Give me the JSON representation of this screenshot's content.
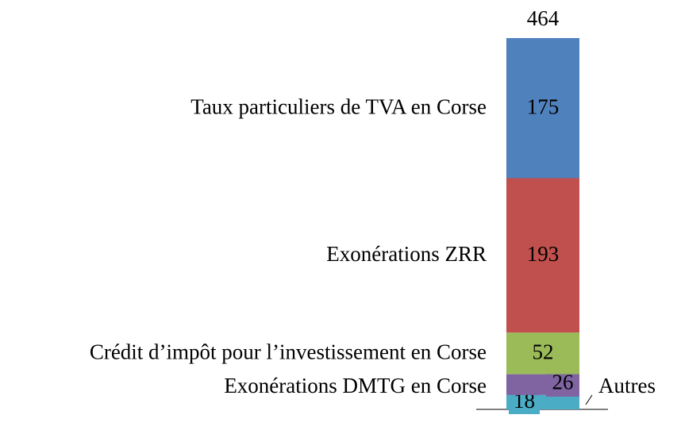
{
  "chart_data": {
    "type": "stacked_bar",
    "total": 464,
    "series": [
      {
        "name": "Autres",
        "color": "#4bacc6",
        "values": [
          18
        ]
      },
      {
        "name": "Exonérations DMTG en Corse",
        "color": "#8064a2",
        "values": [
          26
        ]
      },
      {
        "name": "Crédit d’impôt pour l’investissement en Corse",
        "color": "#9bbb59",
        "values": [
          52
        ]
      },
      {
        "name": "Exonérations ZRR",
        "color": "#c0504d",
        "values": [
          193
        ]
      },
      {
        "name": "Taux particuliers de TVA en Corse",
        "color": "#4f81bd",
        "values": [
          175
        ]
      }
    ]
  }
}
